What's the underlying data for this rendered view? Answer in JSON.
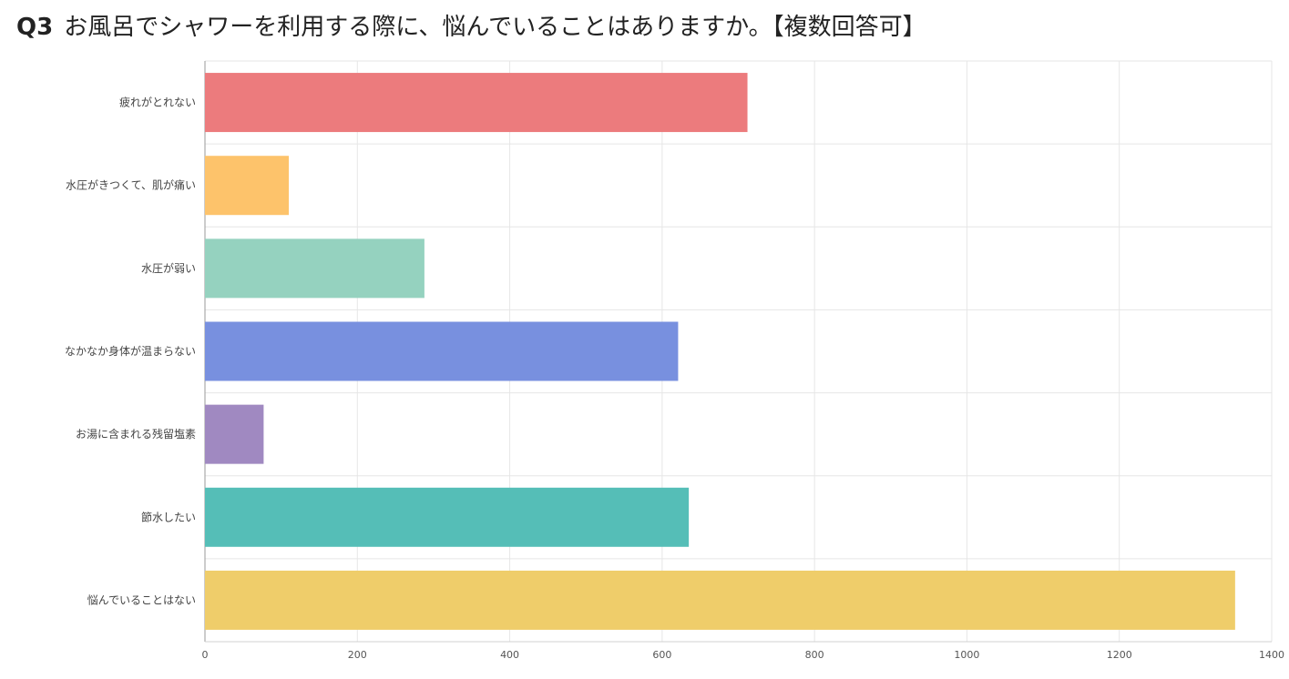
{
  "page": {
    "question_number": "Q3",
    "question_text": "お風呂でシャワーを利用する際に、悩んでいることはありますか。【複数回答可】"
  },
  "chart_data": {
    "type": "bar",
    "orientation": "horizontal",
    "categories": [
      "疲れがとれない",
      "水圧がきつくて、肌が痛い",
      "水圧が弱い",
      "なかなか身体が温まらない",
      "お湯に含まれる残留塩素",
      "節水したい",
      "悩んでいることはない"
    ],
    "values": [
      712,
      110,
      288,
      621,
      77,
      635,
      1352
    ],
    "colors": [
      "#EC7B7D",
      "#FDC36B",
      "#95D2BF",
      "#7890DF",
      "#A089C1",
      "#55BEB7",
      "#EFCD6A"
    ],
    "xlim": [
      0,
      1400
    ],
    "xticks": [
      0,
      200,
      400,
      600,
      800,
      1000,
      1200,
      1400
    ],
    "grid": true,
    "legend": "none",
    "xlabel": "",
    "ylabel": ""
  }
}
